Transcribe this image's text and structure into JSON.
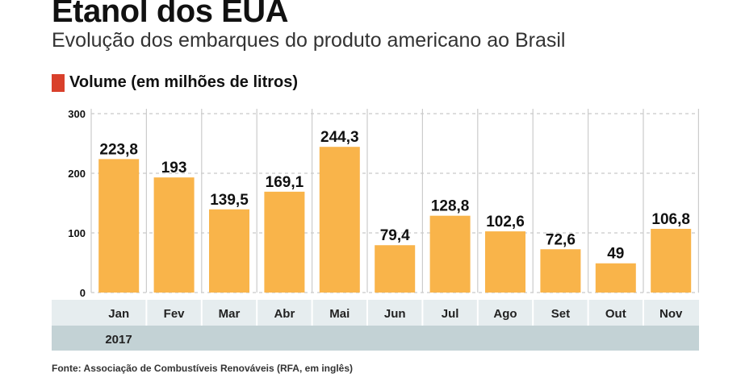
{
  "chart_data": {
    "type": "bar",
    "title": "Etanol dos EUA",
    "subtitle": "Evolução dos embarques do produto americano ao Brasil",
    "legend": "Volume (em milhões de litros)",
    "categories": [
      "Jan",
      "Fev",
      "Mar",
      "Abr",
      "Mai",
      "Jun",
      "Jul",
      "Ago",
      "Set",
      "Out",
      "Nov"
    ],
    "values": [
      223.8,
      193,
      139.5,
      169.1,
      244.3,
      79.4,
      128.8,
      102.6,
      72.6,
      49,
      106.8
    ],
    "value_labels": [
      "223,8",
      "193",
      "139,5",
      "169,1",
      "244,3",
      "79,4",
      "128,8",
      "102,6",
      "72,6",
      "49",
      "106,8"
    ],
    "year": "2017",
    "ylim": [
      0,
      300
    ],
    "yticks": [
      0,
      100,
      200,
      300
    ],
    "grid": true,
    "colors": {
      "bar": "#f9b44a",
      "legend": "#d9402b",
      "month_row": "#e6edef",
      "year_row": "#c3d2d5"
    },
    "source": "Fonte: Associação de Combustíveis Renováveis (RFA, em inglês)"
  }
}
